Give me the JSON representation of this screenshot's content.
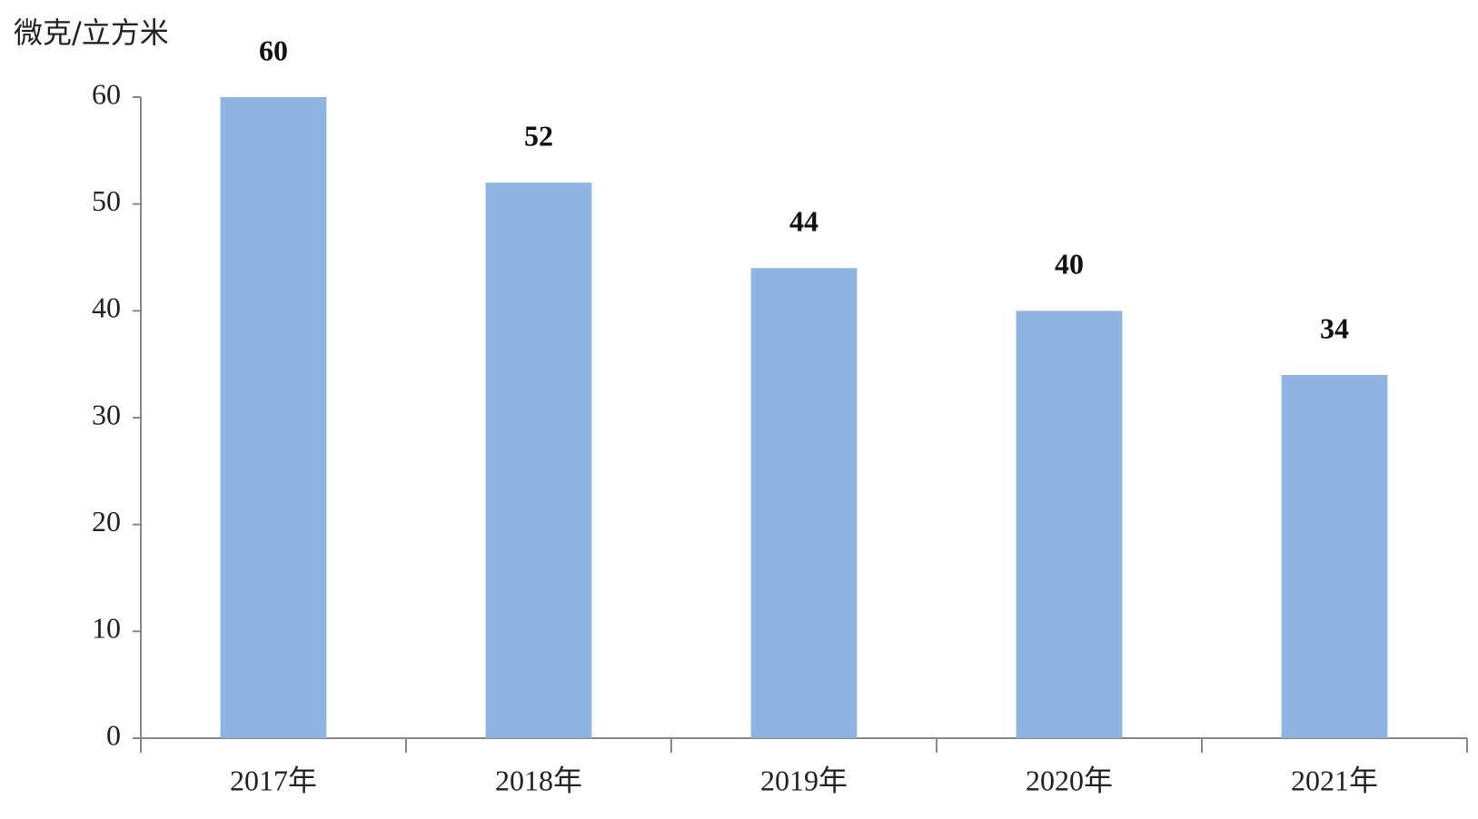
{
  "chart_data": {
    "type": "bar",
    "y_label": "微克/立方米",
    "categories": [
      "2017年",
      "2018年",
      "2019年",
      "2020年",
      "2021年"
    ],
    "values": [
      60,
      52,
      44,
      40,
      34
    ],
    "color": "#8eb4e3",
    "ylim": [
      0,
      60
    ],
    "yticks": [
      0,
      10,
      20,
      30,
      40,
      50,
      60
    ],
    "grid": false
  }
}
